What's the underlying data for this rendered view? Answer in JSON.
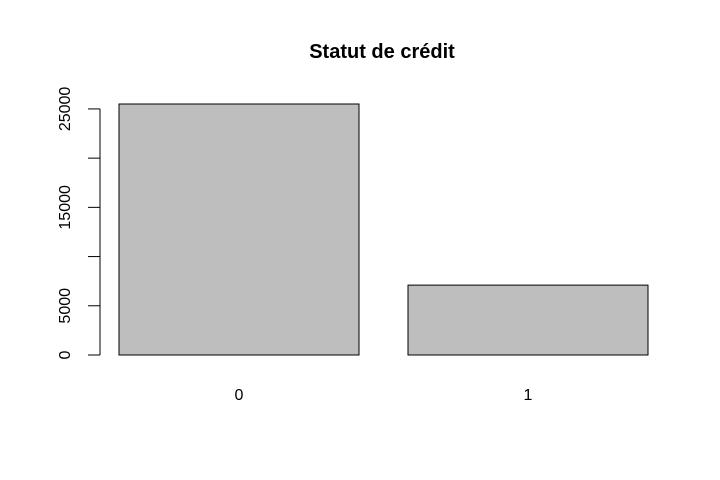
{
  "chart_data": {
    "type": "bar",
    "title": "Statut de crédit",
    "xlabel": "",
    "ylabel": "",
    "categories": [
      "0",
      "1"
    ],
    "values": [
      25500,
      7100
    ],
    "ylim": [
      0,
      25500
    ],
    "y_ticks": [
      0,
      5000,
      10000,
      15000,
      20000,
      25000
    ],
    "y_tick_labels": [
      "0",
      "5000",
      "",
      "15000",
      "",
      "25000"
    ],
    "bar_color": "#bebebe",
    "grid": false
  }
}
